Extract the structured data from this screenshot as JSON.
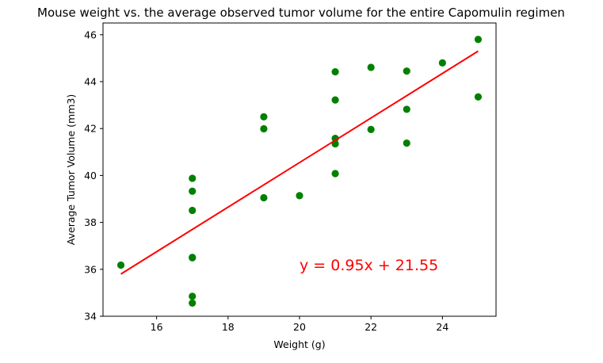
{
  "chart_data": {
    "type": "scatter",
    "title": "Mouse weight vs. the average observed tumor volume for the entire Capomulin regimen",
    "xlabel": "Weight (g)",
    "ylabel": "Average Tumor Volume (mm3)",
    "xlim": [
      14.5,
      25.5
    ],
    "ylim": [
      34,
      46.5
    ],
    "xticks": [
      16,
      18,
      20,
      22,
      24
    ],
    "yticks": [
      34,
      36,
      38,
      40,
      42,
      44,
      46
    ],
    "grid": false,
    "points": [
      {
        "x": 15,
        "y": 36.18
      },
      {
        "x": 17,
        "y": 39.88
      },
      {
        "x": 17,
        "y": 39.33
      },
      {
        "x": 17,
        "y": 38.51
      },
      {
        "x": 17,
        "y": 36.51
      },
      {
        "x": 17,
        "y": 36.49
      },
      {
        "x": 17,
        "y": 34.85
      },
      {
        "x": 17,
        "y": 34.56
      },
      {
        "x": 19,
        "y": 42.5
      },
      {
        "x": 19,
        "y": 41.99
      },
      {
        "x": 19,
        "y": 39.05
      },
      {
        "x": 20,
        "y": 39.14
      },
      {
        "x": 21,
        "y": 44.42
      },
      {
        "x": 21,
        "y": 43.22
      },
      {
        "x": 21,
        "y": 41.58
      },
      {
        "x": 21,
        "y": 41.35
      },
      {
        "x": 21,
        "y": 40.08
      },
      {
        "x": 22,
        "y": 44.61
      },
      {
        "x": 22,
        "y": 41.96
      },
      {
        "x": 23,
        "y": 44.45
      },
      {
        "x": 23,
        "y": 42.82
      },
      {
        "x": 23,
        "y": 41.38
      },
      {
        "x": 24,
        "y": 44.8
      },
      {
        "x": 25,
        "y": 45.8
      },
      {
        "x": 25,
        "y": 43.35
      }
    ],
    "regression": {
      "slope": 0.95,
      "intercept": 21.55,
      "x_range": [
        15,
        25
      ]
    },
    "annotation": {
      "text": "y = 0.95x + 21.55",
      "x": 20,
      "y": 36
    },
    "colors": {
      "points": "#008000",
      "line": "#ff0000",
      "annotation": "#ff0000"
    }
  }
}
